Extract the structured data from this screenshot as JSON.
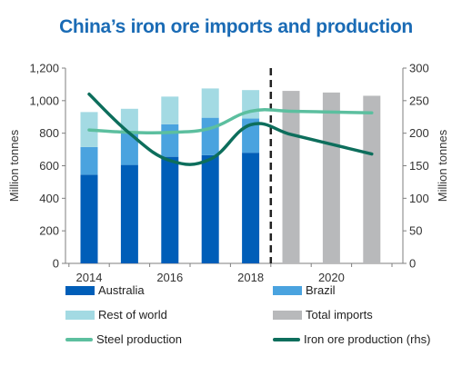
{
  "chart_data": {
    "type": "bar",
    "title": "China’s iron ore imports and production",
    "ylabel_left": "Million tonnes",
    "ylabel_right": "Million tonnes",
    "ylim_left": [
      0,
      1200
    ],
    "ylim_right": [
      0,
      300
    ],
    "yticks_left": [
      "0",
      "200",
      "400",
      "600",
      "800",
      "1,000",
      "1,200"
    ],
    "yticks_right": [
      "0",
      "50",
      "100",
      "150",
      "200",
      "250",
      "300"
    ],
    "xtick_labels": [
      "2014",
      "2016",
      "2018",
      "2020"
    ],
    "categories": [
      2014,
      2015,
      2016,
      2017,
      2018,
      2019,
      2020,
      2021
    ],
    "forecast_divider_after": 2018,
    "series": [
      {
        "name": "Australia",
        "kind": "bar-stack",
        "color": "#005eb8",
        "values": [
          545,
          605,
          655,
          665,
          680,
          null,
          null,
          null
        ]
      },
      {
        "name": "Brazil",
        "kind": "bar-stack",
        "color": "#4aa3df",
        "values": [
          170,
          195,
          200,
          230,
          210,
          null,
          null,
          null
        ]
      },
      {
        "name": "Rest of world",
        "kind": "bar-stack",
        "color": "#a3dae3",
        "values": [
          215,
          150,
          170,
          180,
          175,
          null,
          null,
          null
        ]
      },
      {
        "name": "Total imports",
        "kind": "bar",
        "color": "#b8b9bb",
        "values": [
          null,
          null,
          null,
          null,
          null,
          1060,
          1050,
          1030
        ]
      },
      {
        "name": "Steel production",
        "kind": "line",
        "axis": "left",
        "color": "#5cbf9f",
        "values": [
          820,
          805,
          805,
          830,
          935,
          935,
          930,
          925
        ]
      },
      {
        "name": "Iron ore production (rhs)",
        "kind": "line",
        "axis": "right",
        "color": "#0d6e5c",
        "values": [
          260,
          200,
          158,
          160,
          213,
          198,
          183,
          168
        ]
      }
    ],
    "legend": [
      "Australia",
      "Brazil",
      "Rest of world",
      "Total imports",
      "Steel production",
      "Iron ore production (rhs)"
    ],
    "legend_position": "bottom",
    "grid": false
  }
}
